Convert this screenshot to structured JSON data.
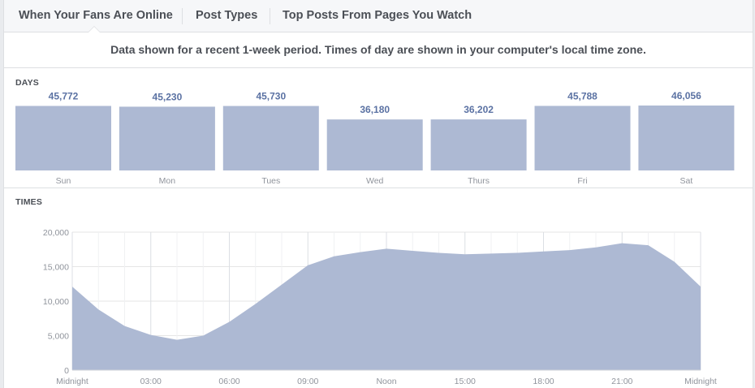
{
  "tabs": [
    {
      "label": "When Your Fans Are Online",
      "active": true
    },
    {
      "label": "Post Types",
      "active": false
    },
    {
      "label": "Top Posts From Pages You Watch",
      "active": false
    }
  ],
  "notice": "Data shown for a recent 1-week period. Times of day are shown in your computer's local time zone.",
  "colors": {
    "bar_fill": "#adb9d3",
    "value_label": "#5b72a3",
    "area_fill": "#adb9d3",
    "grid": "#e5e5e5"
  },
  "chart_data": [
    {
      "type": "bar",
      "title": "DAYS",
      "categories": [
        "Sun",
        "Mon",
        "Tues",
        "Wed",
        "Thurs",
        "Fri",
        "Sat"
      ],
      "values": [
        45772,
        45230,
        45730,
        36180,
        36202,
        45788,
        46056
      ],
      "value_labels": [
        "45,772",
        "45,230",
        "45,730",
        "36,180",
        "36,202",
        "45,788",
        "46,056"
      ],
      "ylim": [
        0,
        46056
      ],
      "grid": false
    },
    {
      "type": "area",
      "title": "TIMES",
      "x": [
        0,
        1,
        2,
        3,
        4,
        5,
        6,
        7,
        8,
        9,
        10,
        11,
        12,
        13,
        14,
        15,
        16,
        17,
        18,
        19,
        20,
        21,
        22,
        23,
        24
      ],
      "values": [
        12100,
        8800,
        6400,
        5100,
        4400,
        5000,
        7000,
        9600,
        12400,
        15200,
        16500,
        17100,
        17600,
        17300,
        17000,
        16800,
        16900,
        17000,
        17200,
        17400,
        17800,
        18400,
        18100,
        15700,
        12100
      ],
      "xticks": [
        {
          "x": 0,
          "label": "Midnight"
        },
        {
          "x": 3,
          "label": "03:00"
        },
        {
          "x": 6,
          "label": "06:00"
        },
        {
          "x": 9,
          "label": "09:00"
        },
        {
          "x": 12,
          "label": "Noon"
        },
        {
          "x": 15,
          "label": "15:00"
        },
        {
          "x": 18,
          "label": "18:00"
        },
        {
          "x": 21,
          "label": "21:00"
        },
        {
          "x": 24,
          "label": "Midnight"
        }
      ],
      "yticks": [
        {
          "y": 0,
          "label": "0"
        },
        {
          "y": 5000,
          "label": "5,000"
        },
        {
          "y": 10000,
          "label": "10,000"
        },
        {
          "y": 15000,
          "label": "15,000"
        },
        {
          "y": 20000,
          "label": "20,000"
        }
      ],
      "ylim": [
        0,
        20000
      ],
      "xlim": [
        0,
        24
      ],
      "grid": true
    }
  ]
}
